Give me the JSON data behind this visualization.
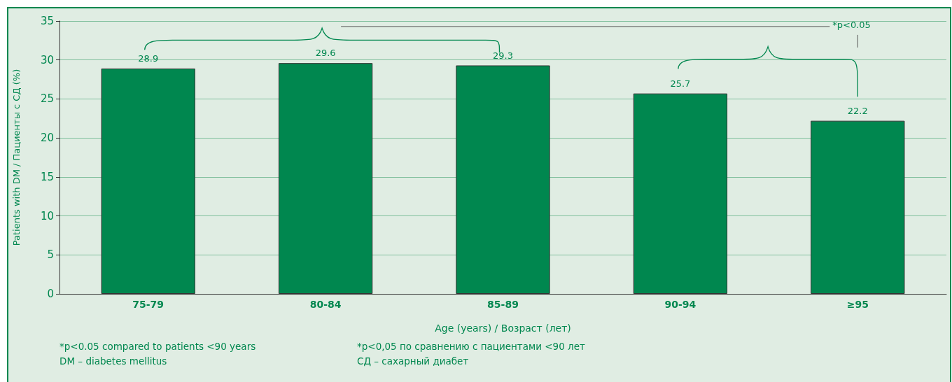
{
  "chart_data": {
    "type": "bar",
    "xlabel": "Age (years) / Возраст (лет)",
    "ylabel": "Patients with DM / Пациенты с СД (%)",
    "categories": [
      "75-79",
      "80-84",
      "85-89",
      "90-94",
      "≥95"
    ],
    "values": [
      28.9,
      29.6,
      29.3,
      25.7,
      22.2
    ],
    "color": "#00874f",
    "ylim": [
      0,
      35
    ],
    "yticks": [
      0,
      5,
      10,
      15,
      20,
      25,
      30,
      35
    ],
    "grid": "y",
    "data_labels": true,
    "annotations": [
      "*p<0.05",
      "*p<0.05 compared to patients <90 years",
      "DM – diabetes mellitus",
      "*p<0,05 по сравнению с пациентами <90 лет",
      "СД – сахарный диабет"
    ]
  }
}
